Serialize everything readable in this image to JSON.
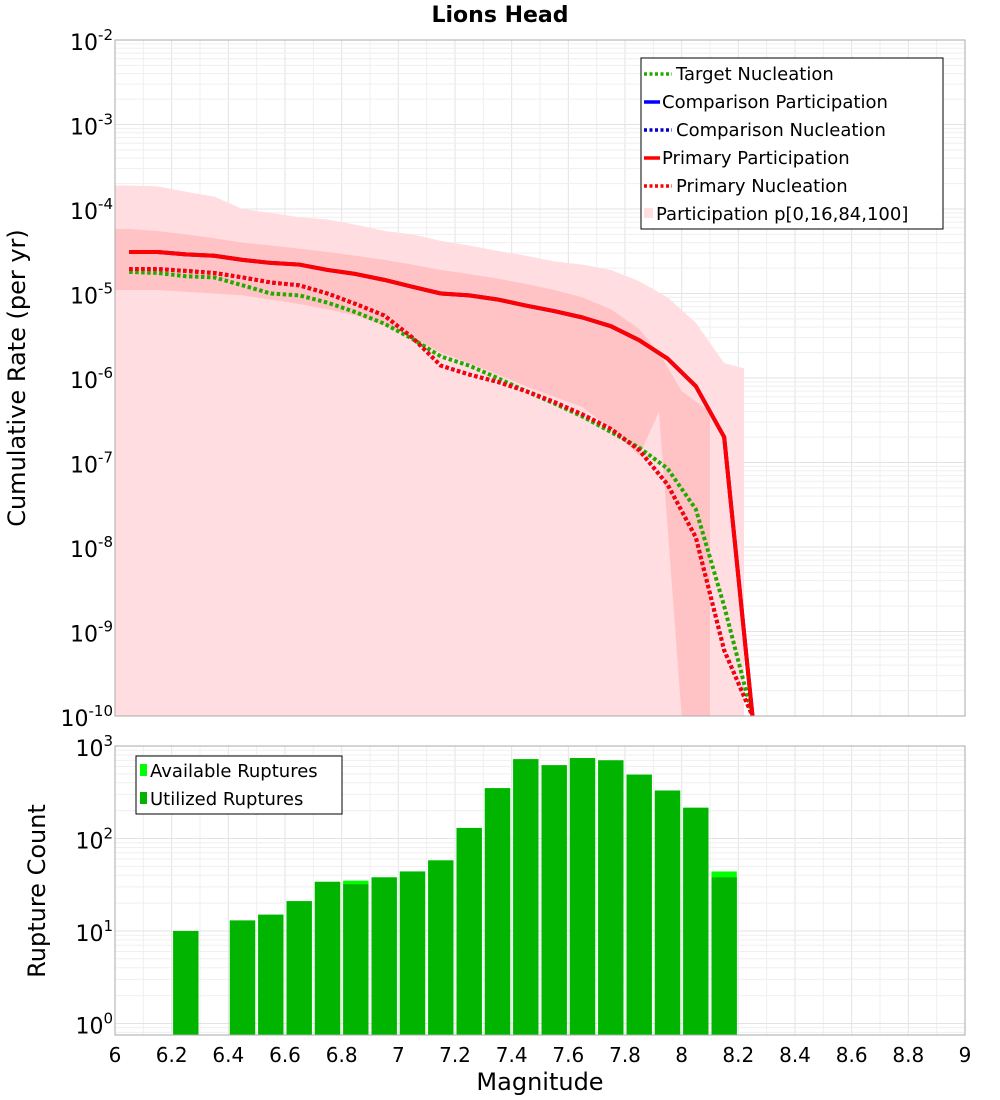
{
  "title": "Lions Head",
  "chart_data": [
    {
      "type": "line",
      "title": "Lions Head",
      "xlabel": "",
      "ylabel": "Cumulative Rate (per yr)",
      "yscale": "log",
      "xlim": [
        6,
        9
      ],
      "ylim": [
        1e-10,
        0.01
      ],
      "ytick_exponents": [
        -2,
        -3,
        -4,
        -5,
        -6,
        -7,
        -8,
        -9,
        -10
      ],
      "x": [
        6.05,
        6.15,
        6.25,
        6.35,
        6.45,
        6.55,
        6.65,
        6.75,
        6.85,
        6.95,
        7.05,
        7.15,
        7.25,
        7.35,
        7.45,
        7.55,
        7.65,
        7.75,
        7.85,
        7.95,
        8.05,
        8.15,
        8.25
      ],
      "series": [
        {
          "name": "Target Nucleation",
          "style": "dotted",
          "color": "#22aa00",
          "values": [
            1.8e-05,
            1.75e-05,
            1.6e-05,
            1.55e-05,
            1.25e-05,
            1e-05,
            9.5e-06,
            7.8e-06,
            6e-06,
            4.4e-06,
            2.9e-06,
            1.8e-06,
            1.4e-06,
            1e-06,
            7e-07,
            5e-07,
            3.5e-07,
            2.3e-07,
            1.5e-07,
            8.5e-08,
            2.8e-08,
            2e-09,
            1e-10
          ]
        },
        {
          "name": "Comparison Participation",
          "style": "solid",
          "color": "#0000ff",
          "values": [
            3.1e-05,
            3.1e-05,
            2.9e-05,
            2.8e-05,
            2.5e-05,
            2.3e-05,
            2.2e-05,
            1.9e-05,
            1.7e-05,
            1.45e-05,
            1.2e-05,
            1e-05,
            9.5e-06,
            8.5e-06,
            7.2e-06,
            6.2e-06,
            5.2e-06,
            4.1e-06,
            2.8e-06,
            1.7e-06,
            8e-07,
            2e-07,
            1e-10
          ]
        },
        {
          "name": "Comparison Nucleation",
          "style": "dotted",
          "color": "#0000cc",
          "values": [
            1.95e-05,
            1.95e-05,
            1.85e-05,
            1.75e-05,
            1.55e-05,
            1.35e-05,
            1.25e-05,
            1e-05,
            7.5e-06,
            5.5e-06,
            3e-06,
            1.4e-06,
            1.1e-06,
            9e-07,
            7e-07,
            5.2e-07,
            3.7e-07,
            2.5e-07,
            1.4e-07,
            5.5e-08,
            1.3e-08,
            6e-10,
            1e-10
          ]
        },
        {
          "name": "Primary Participation",
          "style": "solid",
          "color": "#ff0000",
          "values": [
            3.1e-05,
            3.1e-05,
            2.9e-05,
            2.8e-05,
            2.5e-05,
            2.3e-05,
            2.2e-05,
            1.9e-05,
            1.7e-05,
            1.45e-05,
            1.2e-05,
            1e-05,
            9.5e-06,
            8.5e-06,
            7.2e-06,
            6.2e-06,
            5.2e-06,
            4.1e-06,
            2.8e-06,
            1.7e-06,
            8e-07,
            2e-07,
            1e-10
          ]
        },
        {
          "name": "Primary Nucleation",
          "style": "dotted",
          "color": "#ff0000",
          "values": [
            1.95e-05,
            1.95e-05,
            1.85e-05,
            1.75e-05,
            1.55e-05,
            1.35e-05,
            1.25e-05,
            1e-05,
            7.5e-06,
            5.5e-06,
            3e-06,
            1.4e-06,
            1.1e-06,
            9e-07,
            7e-07,
            5.2e-07,
            3.7e-07,
            2.5e-07,
            1.4e-07,
            5.5e-08,
            1.3e-08,
            6e-10,
            1e-10
          ]
        }
      ],
      "bands": [
        {
          "name": "Participation p[0,100]",
          "color": "#ffdde0",
          "x": [
            6.0,
            6.05,
            6.15,
            6.25,
            6.35,
            6.45,
            6.55,
            6.65,
            6.75,
            6.85,
            6.95,
            7.05,
            7.15,
            7.25,
            7.35,
            7.45,
            7.55,
            7.65,
            7.75,
            7.85,
            7.95,
            8.05,
            8.15,
            8.22
          ],
          "low": [
            1e-10,
            1e-10,
            1e-10,
            1e-10,
            1e-10,
            1e-10,
            1e-10,
            1e-10,
            1e-10,
            1e-10,
            1e-10,
            1e-10,
            1e-10,
            1e-10,
            1e-10,
            1e-10,
            1e-10,
            1e-10,
            1e-10,
            1e-10,
            1e-10,
            1e-10,
            1e-10,
            1e-10
          ],
          "high": [
            0.00019,
            0.00019,
            0.000185,
            0.00016,
            0.00014,
            0.0001,
            9e-05,
            8e-05,
            7.5e-05,
            6.5e-05,
            5.5e-05,
            5e-05,
            4.2e-05,
            3.7e-05,
            3.2e-05,
            2.8e-05,
            2.4e-05,
            2.2e-05,
            1.9e-05,
            1.4e-05,
            9e-06,
            4.5e-06,
            1.5e-06,
            1.3e-06
          ]
        },
        {
          "name": "Participation p[16,84]",
          "color": "#ffc3c6",
          "x": [
            6.0,
            6.05,
            6.15,
            6.25,
            6.35,
            6.45,
            6.55,
            6.65,
            6.75,
            6.85,
            6.95,
            7.05,
            7.15,
            7.25,
            7.35,
            7.45,
            7.55,
            7.65,
            7.75,
            7.85,
            7.92,
            8.0,
            8.1
          ],
          "low": [
            1.1e-05,
            1.1e-05,
            1.1e-05,
            1.05e-05,
            1e-05,
            9.5e-06,
            8.5e-06,
            7.5e-06,
            6.5e-06,
            5.5e-06,
            4.2e-06,
            3e-06,
            2e-06,
            1.5e-06,
            1.1e-06,
            8e-07,
            6e-07,
            4.5e-07,
            2.5e-07,
            1.2e-07,
            4e-07,
            1e-10,
            1e-10
          ],
          "high": [
            5.8e-05,
            5.8e-05,
            5.5e-05,
            5e-05,
            4.5e-05,
            4e-05,
            3.7e-05,
            3.4e-05,
            3.1e-05,
            2.8e-05,
            2.5e-05,
            2.2e-05,
            1.9e-05,
            1.7e-05,
            1.5e-05,
            1.3e-05,
            1.1e-05,
            9e-06,
            6.5e-06,
            3.8e-06,
            2e-06,
            7e-07,
            4e-07
          ]
        }
      ],
      "legend_position": "top-right",
      "legend": [
        "Target Nucleation",
        "Comparison Participation",
        "Comparison Nucleation",
        "Primary Participation",
        "Primary Nucleation",
        "Participation p[0,16,84,100]"
      ]
    },
    {
      "type": "bar",
      "title": "",
      "xlabel": "Magnitude",
      "ylabel": "Rupture Count",
      "yscale": "log",
      "xlim": [
        6,
        9
      ],
      "ylim": [
        0.75,
        1000
      ],
      "ytick_exponents": [
        3,
        2,
        1,
        0
      ],
      "xticks": [
        "6",
        "6.2",
        "6.4",
        "6.6",
        "6.8",
        "7",
        "7.2",
        "7.4",
        "7.6",
        "7.8",
        "8",
        "8.2",
        "8.4",
        "8.6",
        "8.8",
        "9"
      ],
      "bin_width": 0.1,
      "categories": [
        6.25,
        6.45,
        6.55,
        6.65,
        6.75,
        6.85,
        6.95,
        7.05,
        7.15,
        7.25,
        7.35,
        7.45,
        7.55,
        7.65,
        7.75,
        7.85,
        7.95,
        8.05,
        8.15
      ],
      "series": [
        {
          "name": "Available Ruptures",
          "color": "#00ff00",
          "values": [
            10,
            13,
            15,
            21,
            34,
            35,
            38,
            44,
            58,
            130,
            350,
            720,
            620,
            740,
            700,
            490,
            330,
            215,
            44
          ]
        },
        {
          "name": "Utilized Ruptures",
          "color": "#00b400",
          "values": [
            10,
            13,
            15,
            21,
            34,
            32,
            38,
            44,
            58,
            130,
            350,
            720,
            620,
            740,
            700,
            490,
            330,
            215,
            38
          ]
        }
      ],
      "legend_position": "top-left",
      "legend": [
        "Available Ruptures",
        "Utilized Ruptures"
      ]
    }
  ]
}
